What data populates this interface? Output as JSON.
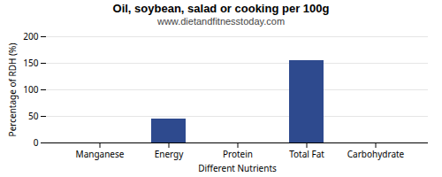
{
  "chart_data": {
    "type": "bar",
    "title": "Oil, soybean, salad or cooking per 100g",
    "subtitle": "www.dietandfitnesstoday.com",
    "xlabel": "Different Nutrients",
    "ylabel": "Percentage of RDH (%)",
    "categories": [
      "Manganese",
      "Energy",
      "Protein",
      "Total Fat",
      "Carbohydrate"
    ],
    "values": [
      0,
      45,
      0,
      155,
      0
    ],
    "color": "#2e4a8e",
    "ylim": [
      0,
      200
    ],
    "yticks": [
      0,
      50,
      100,
      150,
      200
    ],
    "grid": true
  }
}
